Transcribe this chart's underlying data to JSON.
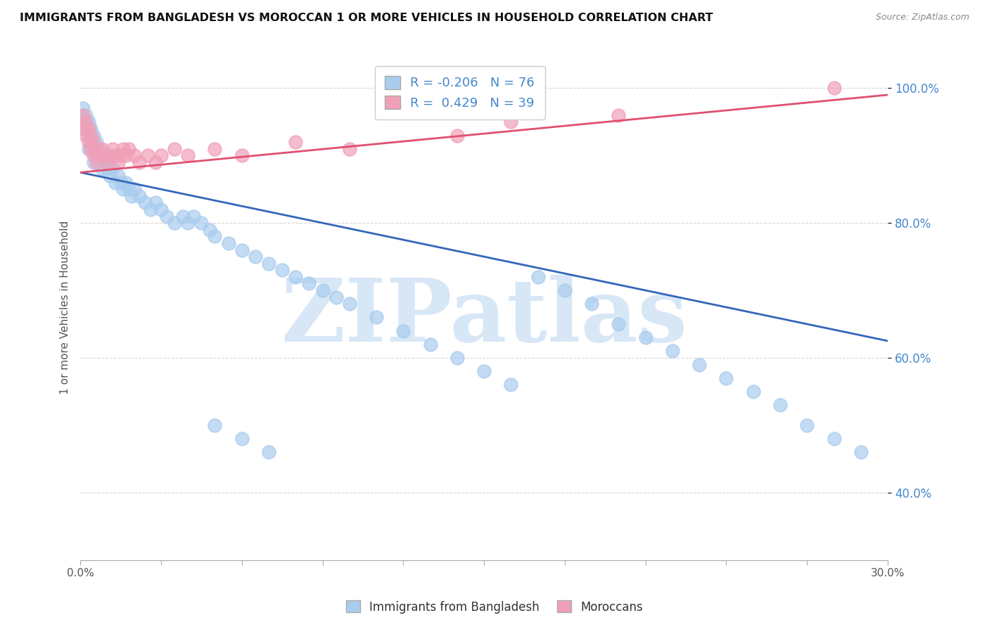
{
  "title": "IMMIGRANTS FROM BANGLADESH VS MOROCCAN 1 OR MORE VEHICLES IN HOUSEHOLD CORRELATION CHART",
  "source": "Source: ZipAtlas.com",
  "ylabel": "1 or more Vehicles in Household",
  "legend_blue_r": "-0.206",
  "legend_blue_n": "76",
  "legend_pink_r": "0.429",
  "legend_pink_n": "39",
  "legend_label_blue": "Immigrants from Bangladesh",
  "legend_label_pink": "Moroccans",
  "blue_color": "#aaccee",
  "pink_color": "#f0a0b8",
  "blue_line_color": "#3366bb",
  "pink_line_color": "#e05070",
  "watermark": "ZIPatlas",
  "watermark_color": "#b8d4f0",
  "blue_scatter_x": [
    0.001,
    0.001,
    0.002,
    0.002,
    0.003,
    0.003,
    0.003,
    0.004,
    0.004,
    0.005,
    0.005,
    0.005,
    0.006,
    0.006,
    0.007,
    0.007,
    0.008,
    0.008,
    0.009,
    0.01,
    0.01,
    0.011,
    0.012,
    0.013,
    0.014,
    0.015,
    0.016,
    0.017,
    0.018,
    0.019,
    0.02,
    0.022,
    0.024,
    0.026,
    0.028,
    0.03,
    0.032,
    0.035,
    0.038,
    0.04,
    0.042,
    0.045,
    0.048,
    0.05,
    0.055,
    0.06,
    0.065,
    0.07,
    0.075,
    0.08,
    0.085,
    0.09,
    0.095,
    0.1,
    0.11,
    0.12,
    0.13,
    0.14,
    0.15,
    0.16,
    0.17,
    0.18,
    0.19,
    0.2,
    0.21,
    0.22,
    0.23,
    0.24,
    0.25,
    0.26,
    0.27,
    0.28,
    0.29,
    0.05,
    0.06,
    0.07
  ],
  "blue_scatter_y": [
    0.97,
    0.95,
    0.96,
    0.94,
    0.95,
    0.93,
    0.91,
    0.94,
    0.92,
    0.93,
    0.91,
    0.89,
    0.92,
    0.9,
    0.91,
    0.89,
    0.9,
    0.88,
    0.89,
    0.9,
    0.88,
    0.87,
    0.88,
    0.86,
    0.87,
    0.86,
    0.85,
    0.86,
    0.85,
    0.84,
    0.85,
    0.84,
    0.83,
    0.82,
    0.83,
    0.82,
    0.81,
    0.8,
    0.81,
    0.8,
    0.81,
    0.8,
    0.79,
    0.78,
    0.77,
    0.76,
    0.75,
    0.74,
    0.73,
    0.72,
    0.71,
    0.7,
    0.69,
    0.68,
    0.66,
    0.64,
    0.62,
    0.6,
    0.58,
    0.56,
    0.72,
    0.7,
    0.68,
    0.65,
    0.63,
    0.61,
    0.59,
    0.57,
    0.55,
    0.53,
    0.5,
    0.48,
    0.46,
    0.5,
    0.48,
    0.46
  ],
  "pink_scatter_x": [
    0.001,
    0.001,
    0.002,
    0.002,
    0.003,
    0.003,
    0.004,
    0.004,
    0.005,
    0.005,
    0.006,
    0.006,
    0.007,
    0.008,
    0.009,
    0.01,
    0.011,
    0.012,
    0.013,
    0.014,
    0.015,
    0.016,
    0.017,
    0.018,
    0.02,
    0.022,
    0.025,
    0.028,
    0.03,
    0.035,
    0.04,
    0.05,
    0.06,
    0.08,
    0.1,
    0.14,
    0.16,
    0.2,
    0.28
  ],
  "pink_scatter_y": [
    0.96,
    0.94,
    0.95,
    0.93,
    0.94,
    0.92,
    0.93,
    0.91,
    0.92,
    0.9,
    0.91,
    0.89,
    0.9,
    0.91,
    0.9,
    0.89,
    0.9,
    0.91,
    0.9,
    0.89,
    0.9,
    0.91,
    0.9,
    0.91,
    0.9,
    0.89,
    0.9,
    0.89,
    0.9,
    0.91,
    0.9,
    0.91,
    0.9,
    0.92,
    0.91,
    0.93,
    0.95,
    0.96,
    1.0
  ],
  "xmin": 0.0,
  "xmax": 0.3,
  "ymin": 0.3,
  "ymax": 1.05,
  "ytick_vals": [
    0.4,
    0.6,
    0.8,
    1.0
  ],
  "blue_trend_x0": 0.0,
  "blue_trend_x1": 0.3,
  "blue_trend_y0": 0.875,
  "blue_trend_y1": 0.625,
  "pink_trend_x0": 0.0,
  "pink_trend_x1": 0.3,
  "pink_trend_y0": 0.875,
  "pink_trend_y1": 0.99
}
